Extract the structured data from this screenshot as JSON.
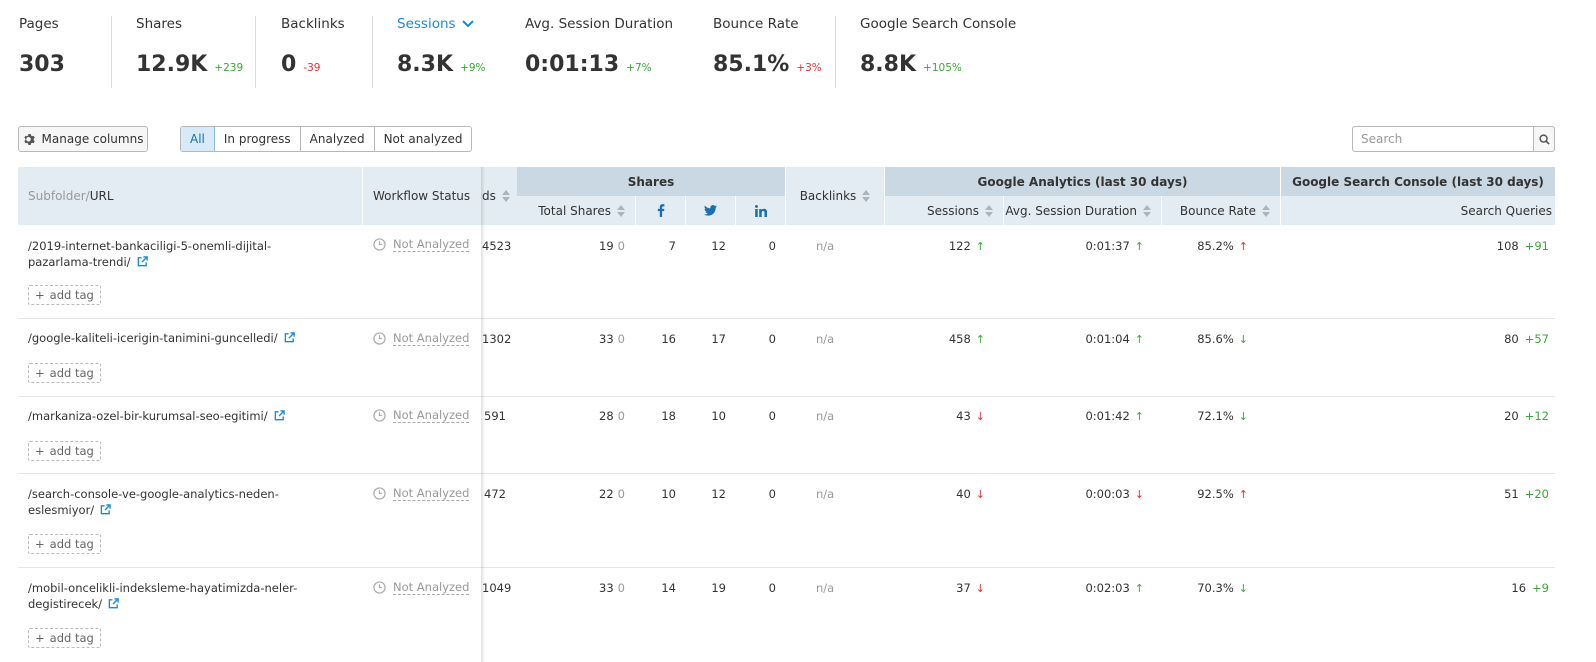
{
  "metrics": [
    {
      "label": "Pages",
      "value": "303",
      "delta": "",
      "trend": ""
    },
    {
      "label": "Shares",
      "value": "12.9K",
      "delta": "+239",
      "trend": "pos"
    },
    {
      "label": "Backlinks",
      "value": "0",
      "delta": "-39",
      "trend": "neg"
    },
    {
      "label": "Sessions",
      "value": "8.3K",
      "delta": "+9%",
      "trend": "pos"
    },
    {
      "label": "Avg. Session Duration",
      "value": "0:01:13",
      "delta": "+7%",
      "trend": "pos"
    },
    {
      "label": "Bounce Rate",
      "value": "85.1%",
      "delta": "+3%",
      "trend": "neg"
    },
    {
      "label": "Google Search Console",
      "value": "8.8K",
      "delta": "+105%",
      "trend": "pos"
    }
  ],
  "toolbar": {
    "manage_columns": "Manage columns",
    "filters": [
      "All",
      "In progress",
      "Analyzed",
      "Not analyzed"
    ],
    "active_filter": "All",
    "search_placeholder": "Search"
  },
  "table": {
    "headers": {
      "subfolder": "Subfolder/",
      "url": "URL",
      "workflow_status": "Workflow Status",
      "cut_col": "ds",
      "shares_group": "Shares",
      "total_shares": "Total Shares",
      "backlinks": "Backlinks",
      "ga_group": "Google Analytics (last 30 days)",
      "sessions": "Sessions",
      "avg_session": "Avg. Session Duration",
      "bounce_rate": "Bounce Rate",
      "gsc_group": "Google Search Console (last 30 days)",
      "search_queries": "Search Queries"
    },
    "add_tag": "add tag",
    "rows": [
      {
        "url": "/2019-internet-bankaciligi-5-onemli-dijital-pazarlama-trendi/",
        "status": "Not Analyzed",
        "cut": "4523",
        "total_shares": "19",
        "total_delta": "0",
        "fb": "7",
        "tw": "12",
        "li": "0",
        "backlinks": "n/a",
        "sessions": "122",
        "sessions_trend": "up",
        "avg": "0:01:37",
        "avg_trend": "up",
        "bounce": "85.2%",
        "bounce_trend": "up-bad",
        "queries": "108",
        "queries_delta": "+91"
      },
      {
        "url": "/google-kaliteli-icerigin-tanimini-guncelledi/",
        "status": "Not Analyzed",
        "cut": "1302",
        "total_shares": "33",
        "total_delta": "0",
        "fb": "16",
        "tw": "17",
        "li": "0",
        "backlinks": "n/a",
        "sessions": "458",
        "sessions_trend": "up",
        "avg": "0:01:04",
        "avg_trend": "up",
        "bounce": "85.6%",
        "bounce_trend": "down-good",
        "queries": "80",
        "queries_delta": "+57"
      },
      {
        "url": "/markaniza-ozel-bir-kurumsal-seo-egitimi/",
        "status": "Not Analyzed",
        "cut": "591",
        "total_shares": "28",
        "total_delta": "0",
        "fb": "18",
        "tw": "10",
        "li": "0",
        "backlinks": "n/a",
        "sessions": "43",
        "sessions_trend": "down",
        "avg": "0:01:42",
        "avg_trend": "up",
        "bounce": "72.1%",
        "bounce_trend": "down-good",
        "queries": "20",
        "queries_delta": "+12"
      },
      {
        "url": "/search-console-ve-google-analytics-neden-eslesmiyor/",
        "status": "Not Analyzed",
        "cut": "472",
        "total_shares": "22",
        "total_delta": "0",
        "fb": "10",
        "tw": "12",
        "li": "0",
        "backlinks": "n/a",
        "sessions": "40",
        "sessions_trend": "down",
        "avg": "0:00:03",
        "avg_trend": "down",
        "bounce": "92.5%",
        "bounce_trend": "up-bad",
        "queries": "51",
        "queries_delta": "+20"
      },
      {
        "url": "/mobil-oncelikli-indeksleme-hayatimizda-neler-degistirecek/",
        "status": "Not Analyzed",
        "cut": "1049",
        "total_shares": "33",
        "total_delta": "0",
        "fb": "14",
        "tw": "19",
        "li": "0",
        "backlinks": "n/a",
        "sessions": "37",
        "sessions_trend": "down",
        "avg": "0:02:03",
        "avg_trend": "up",
        "bounce": "70.3%",
        "bounce_trend": "down-good",
        "queries": "16",
        "queries_delta": "+9"
      }
    ]
  },
  "colors": {
    "positive": "#3aa83a",
    "negative": "#e0323a",
    "accent": "#1a8bd6"
  }
}
